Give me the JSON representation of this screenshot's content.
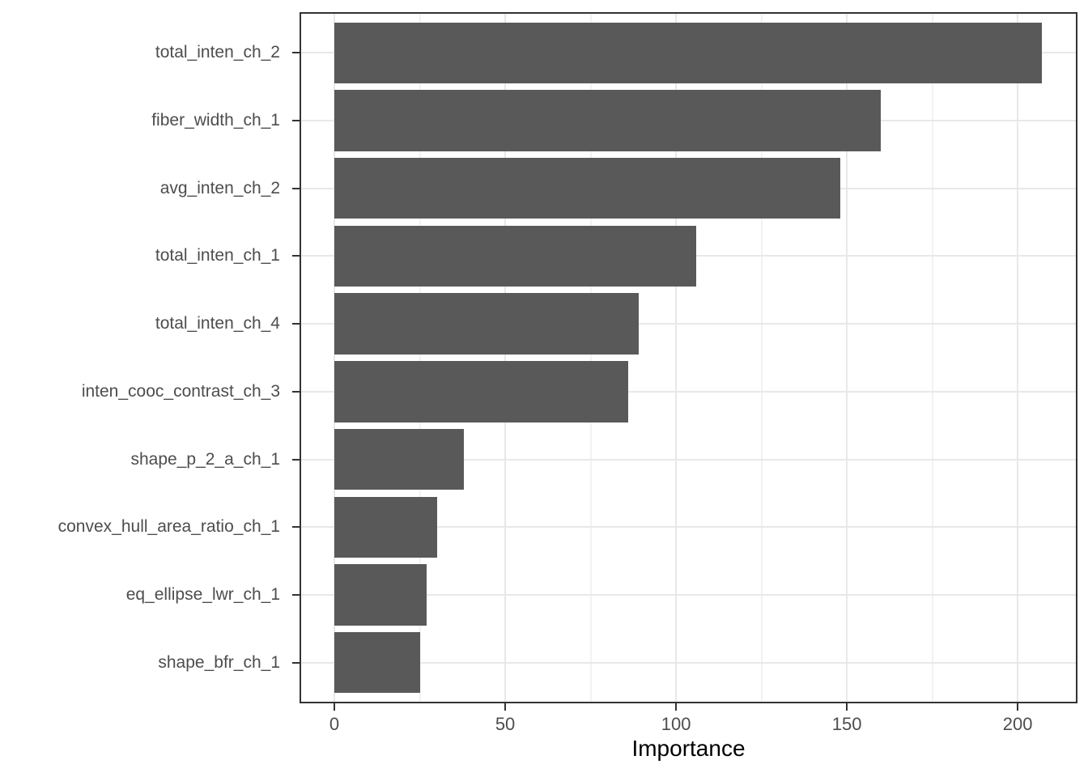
{
  "figure": {
    "background": "#FFFFFF"
  },
  "chart_data": {
    "type": "bar",
    "orientation": "horizontal",
    "title": "",
    "xlabel": "Importance",
    "ylabel": "",
    "categories": [
      "total_inten_ch_2",
      "fiber_width_ch_1",
      "avg_inten_ch_2",
      "total_inten_ch_1",
      "total_inten_ch_4",
      "inten_cooc_contrast_ch_3",
      "shape_p_2_a_ch_1",
      "convex_hull_area_ratio_ch_1",
      "eq_ellipse_lwr_ch_1",
      "shape_bfr_ch_1"
    ],
    "values": [
      207,
      160,
      148,
      106,
      89,
      86,
      38,
      30,
      27,
      25
    ],
    "x_ticks": [
      0,
      50,
      100,
      150,
      200
    ],
    "x_minor_ticks": [
      25,
      75,
      125,
      175
    ],
    "xlim": [
      -10.2,
      217.5
    ],
    "grid": "major-and-minor",
    "legend": "none",
    "colors": {
      "bar_fill": "#595959",
      "panel_border": "#333333",
      "grid_major": "#E8E8E8",
      "grid_minor": "#F2F2F2",
      "tick_label": "#4D4D4D",
      "tick_mark": "#333333",
      "axis_title": "#000000"
    }
  }
}
